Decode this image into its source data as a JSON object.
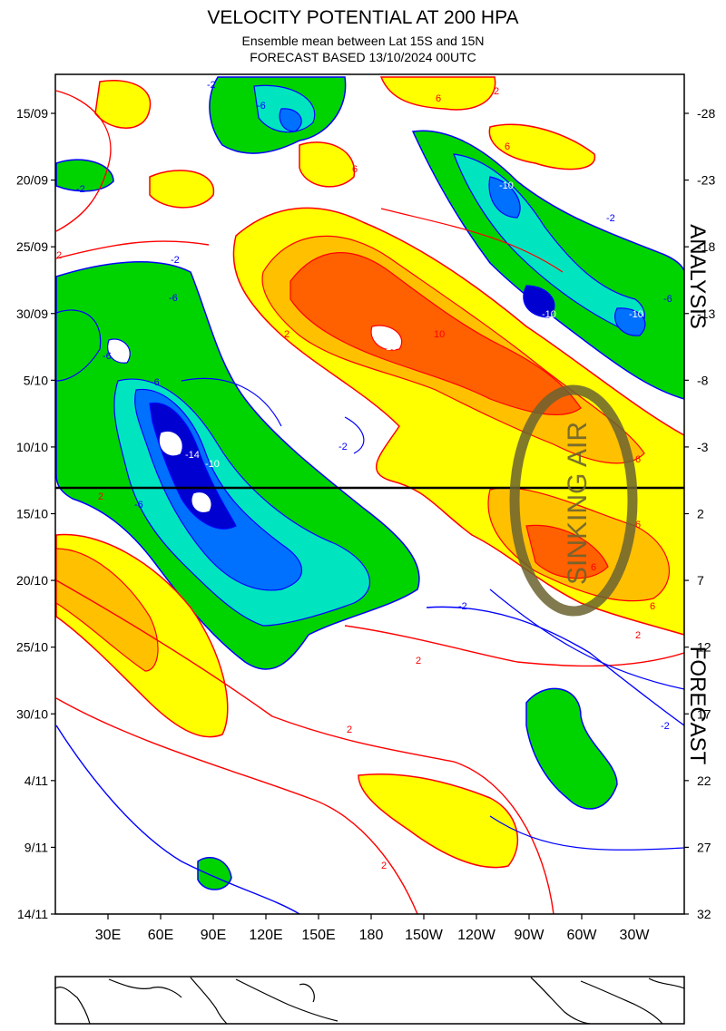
{
  "chart_data": {
    "type": "heatmap",
    "title": "VELOCITY POTENTIAL AT 200 HPA",
    "subtitle": "Ensemble mean between  Lat 15S and 15N",
    "subtitle2": "FORECAST  BASED 13/10/2024 00UTC",
    "x_ticks": [
      "30E",
      "60E",
      "90E",
      "120E",
      "150E",
      "180",
      "150W",
      "120W",
      "90W",
      "60W",
      "30W"
    ],
    "y_ticks_left": [
      "15/09",
      "20/09",
      "25/09",
      "30/09",
      "5/10",
      "10/10",
      "15/10",
      "20/10",
      "25/10",
      "30/10",
      "4/11",
      "9/11",
      "14/11"
    ],
    "y_ticks_right": [
      "-28",
      "-23",
      "-18",
      "-13",
      "-8",
      "-3",
      "2",
      "7",
      "12",
      "17",
      "22",
      "27",
      "32"
    ],
    "side_labels": {
      "top": "ANALYSIS",
      "bottom": "FORECAST"
    },
    "annotation": "SINKING AIR",
    "forecast_start": "13/10",
    "contour_labels": [
      "-2",
      "-6",
      "-10",
      "-14",
      "2",
      "6",
      "10"
    ],
    "colors": {
      "pos_weak": "#ffff00",
      "pos_mid": "#ffc000",
      "pos_strong": "#ff6000",
      "neg_weak": "#00d400",
      "neg_mid": "#00e5c0",
      "neg_strong": "#0070ff",
      "neg_max": "#0000d0",
      "contour_pos": "#ff0000",
      "contour_neg": "#0000ff"
    }
  }
}
